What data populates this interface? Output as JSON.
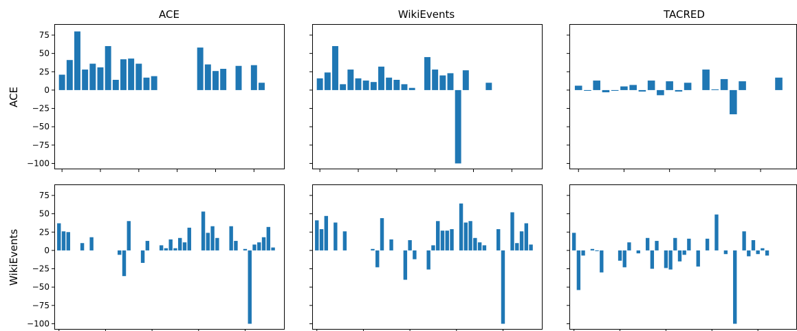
{
  "figure": {
    "column_titles": [
      "ACE",
      "WikiEvents",
      "TACRED"
    ],
    "row_labels": [
      "ACE",
      "WikiEvents"
    ]
  },
  "colors": {
    "bar": "#1f77b4",
    "axis": "#000000",
    "background": "#ffffff"
  },
  "chart_data": [
    {
      "type": "bar",
      "row": "ACE",
      "column": "ACE",
      "title": "ACE",
      "ylabel": "ACE",
      "ylim": [
        -108,
        90
      ],
      "yticks": [
        75,
        50,
        25,
        0,
        -25,
        -50,
        -75,
        -100
      ],
      "xlim": [
        -1,
        29
      ],
      "xticks": [
        0,
        5,
        10,
        15,
        20,
        25
      ],
      "xticklabels_visible": false,
      "x": [
        0,
        1,
        2,
        3,
        4,
        5,
        6,
        7,
        8,
        9,
        10,
        11,
        12,
        13,
        14,
        15,
        18,
        19,
        20,
        21,
        23,
        25,
        26
      ],
      "values": [
        21,
        41,
        80,
        28,
        36,
        31,
        60,
        14,
        42,
        43,
        36,
        17,
        19,
        0,
        0,
        0,
        58,
        35,
        26,
        29,
        33,
        34,
        10
      ]
    },
    {
      "type": "bar",
      "row": "ACE",
      "column": "WikiEvents",
      "title": "WikiEvents",
      "ylabel": "",
      "ylim": [
        -108,
        90
      ],
      "yticks": [
        75,
        50,
        25,
        0,
        -25,
        -50,
        -75,
        -100
      ],
      "xlim": [
        -1,
        29
      ],
      "xticks": [
        0,
        5,
        10,
        15,
        20,
        25
      ],
      "xticklabels_visible": false,
      "x": [
        0,
        1,
        2,
        3,
        4,
        5,
        6,
        7,
        8,
        9,
        10,
        11,
        12,
        14,
        15,
        16,
        17,
        18,
        19,
        22
      ],
      "values": [
        16,
        24,
        60,
        8,
        28,
        16,
        13,
        11,
        32,
        17,
        14,
        8,
        3,
        45,
        28,
        20,
        23,
        -100,
        27,
        10
      ]
    },
    {
      "type": "bar",
      "row": "ACE",
      "column": "TACRED",
      "title": "TACRED",
      "ylabel": "",
      "ylim": [
        -108,
        90
      ],
      "yticks": [
        75,
        50,
        25,
        0,
        -25,
        -50,
        -75,
        -100
      ],
      "xlim": [
        -1,
        24
      ],
      "xticks": [
        0,
        5,
        10,
        15,
        20,
        25
      ],
      "xticklabels_visible": false,
      "x": [
        0,
        1,
        2,
        3,
        4,
        5,
        6,
        7,
        8,
        9,
        10,
        11,
        12,
        14,
        15,
        16,
        17,
        18,
        22
      ],
      "values": [
        6,
        -1,
        13,
        -3,
        -1,
        5,
        7,
        -2,
        13,
        -7,
        12,
        -2,
        10,
        28,
        1,
        15,
        -33,
        12,
        17
      ]
    },
    {
      "type": "bar",
      "row": "WikiEvents",
      "column": "ACE",
      "title": "",
      "ylabel": "WikiEvents",
      "ylim": [
        -108,
        90
      ],
      "yticks": [
        75,
        50,
        25,
        0,
        -25,
        -50,
        -75,
        -100
      ],
      "xlim": [
        -1,
        48.5
      ],
      "xticks": [
        0,
        10,
        20,
        30,
        40
      ],
      "xticklabels_visible": false,
      "x": [
        0,
        1,
        2,
        3,
        5,
        7,
        13,
        14,
        15,
        18,
        19,
        22,
        23,
        24,
        25,
        26,
        27,
        28,
        31,
        32,
        33,
        34,
        35,
        37,
        38,
        40,
        41,
        42,
        43,
        44,
        45,
        46
      ],
      "values": [
        37,
        26,
        25,
        0,
        10,
        18,
        -6,
        -35,
        40,
        -17,
        13,
        7,
        3,
        15,
        3,
        17,
        11,
        31,
        53,
        24,
        33,
        17,
        0,
        33,
        13,
        2,
        -100,
        8,
        11,
        18,
        32,
        4
      ]
    },
    {
      "type": "bar",
      "row": "WikiEvents",
      "column": "WikiEvents",
      "title": "",
      "ylabel": "",
      "ylim": [
        -108,
        90
      ],
      "yticks": [
        75,
        50,
        25,
        0,
        -25,
        -50,
        -75,
        -100
      ],
      "xlim": [
        -1,
        48.5
      ],
      "xticks": [
        0,
        10,
        20,
        30,
        40
      ],
      "xticklabels_visible": false,
      "x": [
        0,
        1,
        2,
        4,
        6,
        12,
        13,
        14,
        16,
        19,
        20,
        21,
        24,
        25,
        26,
        27,
        28,
        29,
        31,
        32,
        33,
        34,
        35,
        36,
        39,
        40,
        42,
        43,
        44,
        45,
        46
      ],
      "values": [
        41,
        29,
        47,
        38,
        26,
        2,
        -23,
        44,
        15,
        -40,
        14,
        -12,
        -26,
        7,
        40,
        27,
        27,
        29,
        64,
        38,
        40,
        17,
        11,
        7,
        29,
        -100,
        52,
        10,
        26,
        37,
        8
      ]
    },
    {
      "type": "bar",
      "row": "WikiEvents",
      "column": "TACRED",
      "title": "",
      "ylabel": "",
      "ylim": [
        -108,
        90
      ],
      "yticks": [
        75,
        50,
        25,
        0,
        -25,
        -50,
        -75,
        -100
      ],
      "xlim": [
        -1,
        48.5
      ],
      "xticks": [
        0,
        10,
        20,
        30,
        40
      ],
      "xticklabels_visible": false,
      "x": [
        0,
        1,
        2,
        4,
        5,
        6,
        10,
        11,
        12,
        14,
        16,
        17,
        18,
        20,
        21,
        22,
        23,
        24,
        25,
        27,
        28,
        29,
        30,
        31,
        33,
        34,
        35,
        37,
        38,
        39,
        40,
        41,
        42,
        43,
        44
      ],
      "values": [
        24,
        -54,
        -7,
        2,
        -1,
        -30,
        -14,
        -23,
        11,
        -4,
        17,
        -25,
        13,
        -24,
        -26,
        17,
        -15,
        -6,
        16,
        -22,
        0,
        16,
        0,
        49,
        -5,
        0,
        -100,
        26,
        -8,
        14,
        -5,
        3,
        -7,
        0,
        0
      ]
    }
  ]
}
